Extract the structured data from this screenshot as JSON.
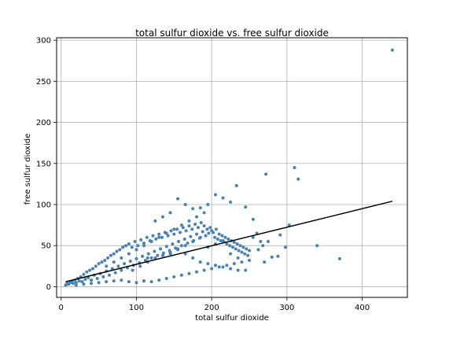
{
  "chart_data": {
    "type": "scatter",
    "title": "total sulfur dioxide vs. free sulfur dioxide",
    "xlabel": "total sulfur dioxide",
    "ylabel": "free sulfur dioxide",
    "xlim": [
      -6,
      460
    ],
    "ylim": [
      -13,
      303
    ],
    "xticks": [
      0,
      100,
      200,
      300,
      400
    ],
    "yticks": [
      0,
      50,
      100,
      150,
      200,
      250,
      300
    ],
    "grid": true,
    "point_color": "#4682b4",
    "line_color": "#000000",
    "series": [
      {
        "type": "scatter",
        "points": [
          [
            6,
            2
          ],
          [
            8,
            4
          ],
          [
            10,
            3
          ],
          [
            12,
            5
          ],
          [
            14,
            6
          ],
          [
            16,
            4
          ],
          [
            18,
            8
          ],
          [
            20,
            5
          ],
          [
            22,
            10
          ],
          [
            24,
            7
          ],
          [
            26,
            12
          ],
          [
            28,
            6
          ],
          [
            30,
            15
          ],
          [
            32,
            9
          ],
          [
            34,
            18
          ],
          [
            36,
            11
          ],
          [
            38,
            20
          ],
          [
            40,
            8
          ],
          [
            42,
            22
          ],
          [
            44,
            14
          ],
          [
            46,
            25
          ],
          [
            48,
            10
          ],
          [
            50,
            28
          ],
          [
            52,
            16
          ],
          [
            54,
            30
          ],
          [
            56,
            12
          ],
          [
            58,
            32
          ],
          [
            60,
            19
          ],
          [
            62,
            35
          ],
          [
            64,
            14
          ],
          [
            66,
            38
          ],
          [
            68,
            22
          ],
          [
            70,
            40
          ],
          [
            72,
            17
          ],
          [
            74,
            43
          ],
          [
            76,
            25
          ],
          [
            78,
            45
          ],
          [
            80,
            20
          ],
          [
            82,
            48
          ],
          [
            84,
            28
          ],
          [
            86,
            50
          ],
          [
            88,
            23
          ],
          [
            90,
            52
          ],
          [
            92,
            31
          ],
          [
            94,
            48
          ],
          [
            96,
            26
          ],
          [
            98,
            55
          ],
          [
            100,
            34
          ],
          [
            102,
            50
          ],
          [
            104,
            29
          ],
          [
            106,
            57
          ],
          [
            108,
            37
          ],
          [
            110,
            53
          ],
          [
            112,
            32
          ],
          [
            114,
            60
          ],
          [
            116,
            40
          ],
          [
            118,
            56
          ],
          [
            120,
            35
          ],
          [
            122,
            62
          ],
          [
            124,
            43
          ],
          [
            126,
            58
          ],
          [
            128,
            38
          ],
          [
            130,
            64
          ],
          [
            132,
            46
          ],
          [
            134,
            60
          ],
          [
            136,
            41
          ],
          [
            138,
            66
          ],
          [
            140,
            49
          ],
          [
            142,
            62
          ],
          [
            144,
            44
          ],
          [
            146,
            68
          ],
          [
            148,
            52
          ],
          [
            150,
            64
          ],
          [
            152,
            47
          ],
          [
            154,
            70
          ],
          [
            156,
            55
          ],
          [
            158,
            66
          ],
          [
            160,
            50
          ],
          [
            162,
            72
          ],
          [
            164,
            58
          ],
          [
            166,
            68
          ],
          [
            168,
            53
          ],
          [
            170,
            74
          ],
          [
            172,
            61
          ],
          [
            174,
            70
          ],
          [
            176,
            56
          ],
          [
            178,
            76
          ],
          [
            180,
            64
          ],
          [
            182,
            72
          ],
          [
            184,
            59
          ],
          [
            186,
            78
          ],
          [
            188,
            67
          ],
          [
            190,
            74
          ],
          [
            192,
            62
          ],
          [
            194,
            70
          ],
          [
            196,
            65
          ],
          [
            198,
            72
          ],
          [
            200,
            68
          ],
          [
            202,
            66
          ],
          [
            204,
            60
          ],
          [
            206,
            70
          ],
          [
            208,
            58
          ],
          [
            210,
            64
          ],
          [
            212,
            56
          ],
          [
            214,
            62
          ],
          [
            216,
            55
          ],
          [
            218,
            60
          ],
          [
            220,
            52
          ],
          [
            222,
            58
          ],
          [
            224,
            50
          ],
          [
            226,
            56
          ],
          [
            228,
            48
          ],
          [
            230,
            54
          ],
          [
            232,
            46
          ],
          [
            234,
            52
          ],
          [
            236,
            44
          ],
          [
            238,
            50
          ],
          [
            240,
            42
          ],
          [
            242,
            48
          ],
          [
            244,
            40
          ],
          [
            246,
            46
          ],
          [
            248,
            38
          ],
          [
            250,
            44
          ],
          [
            20,
            2
          ],
          [
            30,
            3
          ],
          [
            40,
            4
          ],
          [
            50,
            5
          ],
          [
            60,
            6
          ],
          [
            70,
            7
          ],
          [
            80,
            8
          ],
          [
            90,
            6
          ],
          [
            100,
            5
          ],
          [
            110,
            7
          ],
          [
            120,
            6
          ],
          [
            130,
            8
          ],
          [
            140,
            10
          ],
          [
            150,
            12
          ],
          [
            160,
            14
          ],
          [
            170,
            16
          ],
          [
            180,
            18
          ],
          [
            190,
            20
          ],
          [
            200,
            22
          ],
          [
            210,
            24
          ],
          [
            220,
            26
          ],
          [
            230,
            28
          ],
          [
            240,
            30
          ],
          [
            250,
            32
          ],
          [
            255,
            60
          ],
          [
            260,
            65
          ],
          [
            262,
            45
          ],
          [
            265,
            55
          ],
          [
            268,
            50
          ],
          [
            270,
            30
          ],
          [
            275,
            55
          ],
          [
            280,
            36
          ],
          [
            288,
            37
          ],
          [
            291,
            63
          ],
          [
            298,
            48
          ],
          [
            303,
            75
          ],
          [
            310,
            145
          ],
          [
            315,
            131
          ],
          [
            340,
            50
          ],
          [
            370,
            34
          ],
          [
            440,
            288
          ],
          [
            272,
            137
          ],
          [
            233,
            123
          ],
          [
            215,
            108
          ],
          [
            205,
            112
          ],
          [
            155,
            107
          ],
          [
            115,
            35
          ],
          [
            125,
            80
          ],
          [
            135,
            85
          ],
          [
            145,
            90
          ],
          [
            165,
            100
          ],
          [
            175,
            95
          ],
          [
            185,
            96
          ],
          [
            195,
            100
          ],
          [
            225,
            103
          ],
          [
            245,
            97
          ],
          [
            255,
            82
          ],
          [
            145,
            40
          ],
          [
            155,
            45
          ],
          [
            165,
            50
          ],
          [
            175,
            55
          ],
          [
            185,
            60
          ],
          [
            195,
            48
          ],
          [
            205,
            52
          ],
          [
            215,
            56
          ],
          [
            225,
            40
          ],
          [
            235,
            35
          ],
          [
            95,
            20
          ],
          [
            105,
            25
          ],
          [
            115,
            30
          ],
          [
            125,
            35
          ],
          [
            135,
            38
          ],
          [
            145,
            42
          ],
          [
            155,
            46
          ],
          [
            165,
            40
          ],
          [
            175,
            35
          ],
          [
            185,
            30
          ],
          [
            195,
            28
          ],
          [
            205,
            26
          ],
          [
            215,
            24
          ],
          [
            225,
            22
          ],
          [
            235,
            20
          ],
          [
            245,
            20
          ],
          [
            60,
            25
          ],
          [
            70,
            30
          ],
          [
            80,
            35
          ],
          [
            90,
            40
          ],
          [
            100,
            45
          ],
          [
            110,
            50
          ],
          [
            120,
            55
          ],
          [
            130,
            60
          ],
          [
            140,
            65
          ],
          [
            150,
            70
          ],
          [
            160,
            75
          ],
          [
            170,
            80
          ],
          [
            180,
            85
          ],
          [
            190,
            90
          ]
        ]
      },
      {
        "type": "line",
        "points": [
          [
            6,
            6
          ],
          [
            440,
            104
          ]
        ]
      }
    ]
  }
}
